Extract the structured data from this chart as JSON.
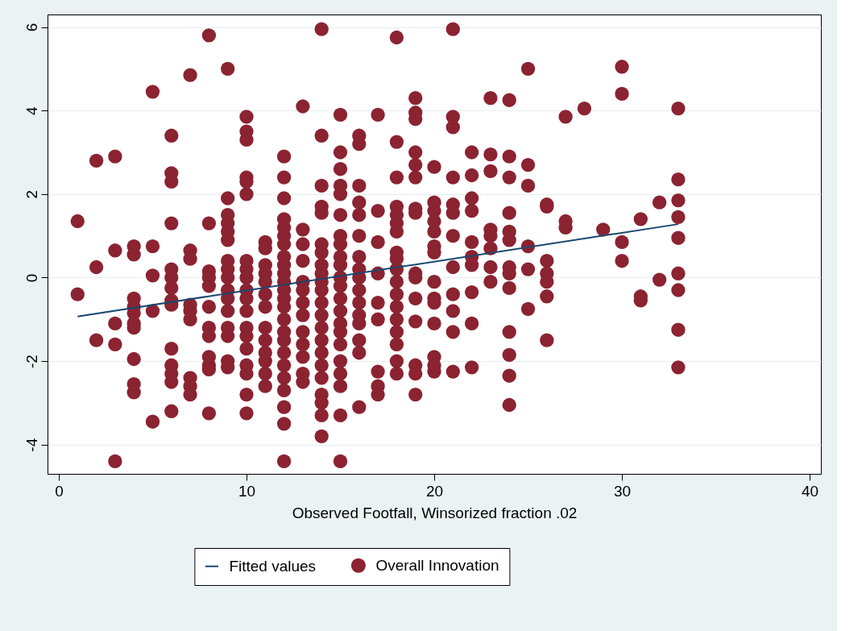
{
  "chart_data": {
    "type": "scatter",
    "xlabel": "Observed Footfall, Winsorized fraction .02",
    "xlim": [
      -0.6,
      40.6
    ],
    "ylim": [
      -4.7,
      6.3
    ],
    "xticks": [
      0,
      10,
      20,
      30,
      40
    ],
    "yticks": [
      -4,
      -2,
      0,
      2,
      4,
      6
    ],
    "grid": "y",
    "legend": "bottom",
    "series": [
      {
        "name": "Fitted values",
        "type": "line",
        "line_style": "solid",
        "color": "#1a476f",
        "x": [
          1,
          33
        ],
        "values": [
          -0.93,
          1.28
        ]
      },
      {
        "name": "Overall Innovation",
        "marker": "circle",
        "color": "#8b2331",
        "x": [
          1,
          1,
          2,
          2,
          2,
          3,
          3,
          3,
          3,
          3,
          4,
          4,
          4,
          4,
          4,
          4,
          4,
          4,
          4,
          4,
          5,
          5,
          5,
          5,
          5,
          6,
          6,
          6,
          6,
          6,
          6,
          6,
          6,
          6,
          6,
          6,
          6,
          6,
          6,
          7,
          7,
          7,
          7,
          7,
          7,
          7,
          7,
          7,
          8,
          8,
          8,
          8,
          8,
          8,
          8,
          8,
          8,
          8,
          8,
          8,
          9,
          9,
          9,
          9,
          9,
          9,
          9,
          9,
          9,
          9,
          9,
          9,
          9,
          9,
          9,
          9,
          10,
          10,
          10,
          10,
          10,
          10,
          10,
          10,
          10,
          10,
          10,
          10,
          10,
          10,
          10,
          10,
          10,
          10,
          10,
          11,
          11,
          11,
          11,
          11,
          11,
          11,
          11,
          11,
          11,
          11,
          11,
          11,
          12,
          12,
          12,
          12,
          12,
          12,
          12,
          12,
          12,
          12,
          12,
          12,
          12,
          12,
          12,
          12,
          12,
          12,
          12,
          12,
          12,
          12,
          12,
          12,
          13,
          13,
          13,
          13,
          13,
          13,
          13,
          13,
          13,
          13,
          13,
          13,
          13,
          14,
          14,
          14,
          14,
          14,
          14,
          14,
          14,
          14,
          14,
          14,
          14,
          14,
          14,
          14,
          14,
          14,
          14,
          14,
          14,
          14,
          14,
          15,
          15,
          15,
          15,
          15,
          15,
          15,
          15,
          15,
          15,
          15,
          15,
          15,
          15,
          15,
          15,
          15,
          15,
          15,
          15,
          15,
          15,
          16,
          16,
          16,
          16,
          16,
          16,
          16,
          16,
          16,
          16,
          16,
          16,
          16,
          16,
          16,
          16,
          17,
          17,
          17,
          17,
          17,
          17,
          17,
          17,
          17,
          18,
          18,
          18,
          18,
          18,
          18,
          18,
          18,
          18,
          18,
          18,
          18,
          18,
          18,
          18,
          18,
          18,
          18,
          19,
          19,
          19,
          19,
          19,
          19,
          19,
          19,
          19,
          19,
          19,
          19,
          19,
          19,
          19,
          20,
          20,
          20,
          20,
          20,
          20,
          20,
          20,
          20,
          20,
          20,
          20,
          20,
          20,
          21,
          21,
          21,
          21,
          21,
          21,
          21,
          21,
          21,
          21,
          21,
          21,
          22,
          22,
          22,
          22,
          22,
          22,
          22,
          22,
          22,
          22,
          23,
          23,
          23,
          23,
          23,
          23,
          23,
          23,
          24,
          24,
          24,
          24,
          24,
          24,
          24,
          24,
          24,
          24,
          24,
          24,
          24,
          25,
          25,
          25,
          25,
          25,
          25,
          26,
          26,
          26,
          26,
          26,
          26,
          26,
          27,
          27,
          27,
          28,
          29,
          30,
          30,
          30,
          30,
          31,
          31,
          31,
          32,
          32,
          33,
          33,
          33,
          33,
          33,
          33,
          33,
          33,
          33
        ],
        "values": [
          1.35,
          -0.4,
          2.8,
          0.25,
          -1.5,
          2.9,
          0.65,
          -1.1,
          -1.6,
          -4.4,
          0.75,
          0.55,
          -0.5,
          -0.7,
          -0.85,
          -1.1,
          -1.2,
          -1.95,
          -2.55,
          -2.75,
          4.45,
          0.75,
          0.05,
          -0.8,
          -3.45,
          3.4,
          2.5,
          2.3,
          1.3,
          0.2,
          0,
          -0.25,
          -0.55,
          -0.65,
          -1.7,
          -2.1,
          -2.3,
          -2.5,
          -3.2,
          4.85,
          0.65,
          0.45,
          -0.65,
          -0.8,
          -1.0,
          -2.4,
          -2.6,
          -2.8,
          5.8,
          1.3,
          0.15,
          0,
          -0.2,
          -0.7,
          -1.2,
          -1.4,
          -1.9,
          -2.1,
          -2.2,
          -3.25,
          5.0,
          1.9,
          1.5,
          1.3,
          1.1,
          0.9,
          0.4,
          0.2,
          0,
          -0.3,
          -0.5,
          -0.8,
          -1.2,
          -1.4,
          -2.0,
          -2.15,
          3.85,
          3.5,
          3.3,
          2.4,
          2.3,
          2.0,
          0.4,
          0.2,
          0,
          -0.3,
          -0.5,
          -0.8,
          -1.2,
          -1.4,
          -1.7,
          -2.1,
          -2.3,
          -2.8,
          -3.25,
          0.85,
          0.7,
          0.3,
          0.1,
          -0.1,
          -0.4,
          -0.7,
          -1.2,
          -1.5,
          -1.8,
          -2.0,
          -2.3,
          -2.6,
          2.9,
          2.4,
          1.9,
          1.4,
          1.2,
          1.0,
          0.8,
          0.5,
          0.3,
          0.1,
          -0.1,
          -0.3,
          -0.5,
          -0.7,
          -1.0,
          -1.3,
          -1.5,
          -1.8,
          -2.1,
          -2.4,
          -2.7,
          -3.1,
          -3.5,
          -4.4,
          4.1,
          1.15,
          0.8,
          0.4,
          -0.1,
          -0.3,
          -0.6,
          -0.9,
          -1.3,
          -1.6,
          -1.9,
          -2.3,
          -2.5,
          5.95,
          3.4,
          2.2,
          1.7,
          1.55,
          0.8,
          0.6,
          0.3,
          0.1,
          -0.1,
          -0.3,
          -0.6,
          -0.9,
          -1.2,
          -1.5,
          -1.8,
          -2.1,
          -2.4,
          -2.8,
          -3.0,
          -3.3,
          -3.8,
          3.9,
          3.0,
          2.6,
          2.2,
          2.0,
          1.5,
          1.0,
          0.8,
          0.5,
          0.3,
          0.0,
          -0.2,
          -0.5,
          -0.8,
          -1.1,
          -1.3,
          -1.6,
          -2.0,
          -2.3,
          -2.6,
          -3.3,
          -4.4,
          3.4,
          3.2,
          2.2,
          1.8,
          1.5,
          1.0,
          0.5,
          0.2,
          0,
          -0.3,
          -0.6,
          -0.9,
          -1.1,
          -1.5,
          -1.8,
          -3.1,
          3.9,
          1.6,
          0.85,
          0.1,
          -0.6,
          -1.0,
          -2.25,
          -2.6,
          -2.8,
          5.75,
          3.25,
          2.4,
          1.7,
          1.5,
          1.3,
          1.1,
          0.6,
          0.45,
          0.2,
          -0.1,
          -0.4,
          -0.7,
          -1.0,
          -1.3,
          -1.6,
          -2.0,
          -2.3,
          4.3,
          3.95,
          3.8,
          3.0,
          2.7,
          2.4,
          1.65,
          1.55,
          0.1,
          0.0,
          -0.5,
          -1.05,
          -2.1,
          -2.3,
          -2.8,
          2.65,
          1.8,
          1.6,
          1.35,
          1.1,
          0.75,
          0.6,
          -0.1,
          -0.5,
          -0.6,
          -1.1,
          -1.9,
          -2.1,
          -2.25,
          5.95,
          3.85,
          3.6,
          2.4,
          1.75,
          1.55,
          1.0,
          0.25,
          -0.4,
          -0.8,
          -1.3,
          -2.25,
          3.0,
          2.45,
          1.9,
          1.6,
          0.85,
          0.5,
          0.3,
          -0.35,
          -1.1,
          -2.15,
          4.3,
          2.95,
          2.55,
          1.15,
          1.0,
          0.7,
          0.25,
          -0.1,
          4.25,
          2.9,
          2.4,
          1.55,
          1.1,
          0.9,
          0.25,
          0.1,
          -0.25,
          -1.3,
          -1.85,
          -2.35,
          -3.05,
          5.0,
          2.7,
          2.2,
          0.75,
          0.2,
          -0.75,
          1.75,
          1.7,
          0.4,
          0.1,
          -0.1,
          -0.45,
          -1.5,
          3.85,
          1.35,
          1.2,
          4.05,
          1.15,
          5.05,
          4.4,
          0.85,
          0.4,
          1.4,
          -0.45,
          -0.55,
          1.8,
          -0.05,
          4.05,
          2.35,
          1.85,
          1.45,
          0.95,
          0.1,
          -0.3,
          -1.25,
          -2.15
        ]
      }
    ]
  }
}
